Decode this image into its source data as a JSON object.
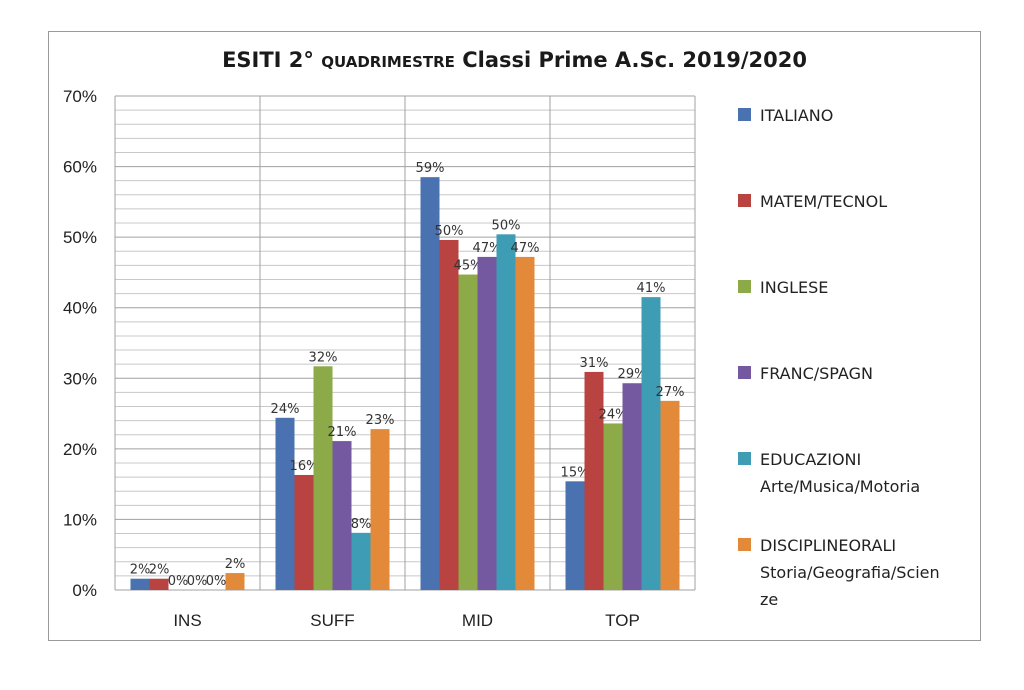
{
  "chart_data": {
    "type": "bar",
    "title_main": "ESITI 2°",
    "title_small": "QUADRIMESTRE",
    "title_rest": "Classi Prime A.Sc. 2019/2020",
    "categories": [
      "INS",
      "SUFF",
      "MID",
      "TOP"
    ],
    "ylim": [
      0,
      0.7
    ],
    "yticks": [
      "0%",
      "10%",
      "20%",
      "30%",
      "40%",
      "50%",
      "60%",
      "70%"
    ],
    "grid": true,
    "legend_position": "right",
    "series": [
      {
        "name": "ITALIANO",
        "name_line2": "",
        "color": "#4a72b0",
        "values": [
          0.016,
          0.244,
          0.585,
          0.154
        ],
        "labels": [
          "2%",
          "24%",
          "59%",
          "15%"
        ]
      },
      {
        "name": "MATEM/TECNOL",
        "name_line2": "",
        "color": "#b84340",
        "values": [
          0.016,
          0.163,
          0.496,
          0.309
        ],
        "labels": [
          "2%",
          "16%",
          "50%",
          "31%"
        ]
      },
      {
        "name": "INGLESE",
        "name_line2": "",
        "color": "#8caa48",
        "values": [
          0.0,
          0.317,
          0.447,
          0.236
        ],
        "labels": [
          "0%",
          "32%",
          "45%",
          "24%"
        ]
      },
      {
        "name": "FRANC/SPAGN",
        "name_line2": "",
        "color": "#7458a0",
        "values": [
          0.0,
          0.211,
          0.472,
          0.293
        ],
        "labels": [
          "0%",
          "21%",
          "47%",
          "29%"
        ]
      },
      {
        "name": "EDUCAZIONI",
        "name_line2": "Arte/Musica/Motoria",
        "color": "#3e9db5",
        "values": [
          0.0,
          0.081,
          0.504,
          0.415
        ],
        "labels": [
          "0%",
          "8%",
          "50%",
          "41%"
        ]
      },
      {
        "name": "DISCIPLINEORALI",
        "name_line2": "Storia/Geografia/Scien",
        "name_line3": "ze",
        "color": "#e38a3a",
        "values": [
          0.024,
          0.228,
          0.472,
          0.268
        ],
        "labels": [
          "2%",
          "23%",
          "47%",
          "27%"
        ]
      }
    ]
  }
}
